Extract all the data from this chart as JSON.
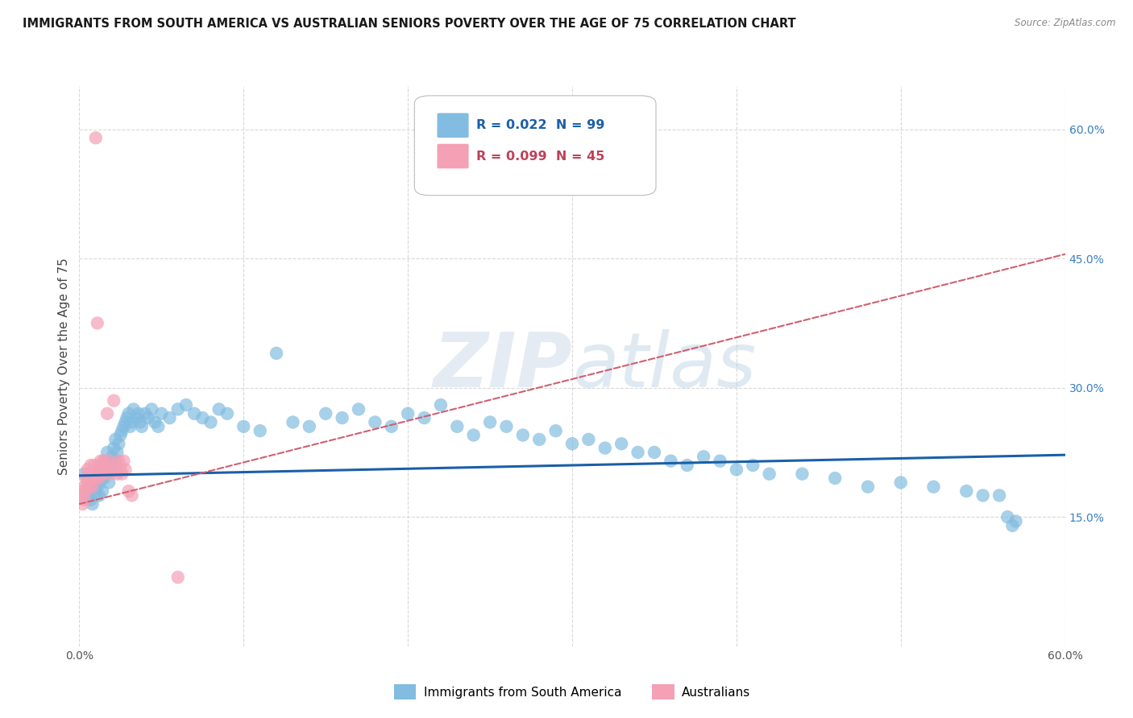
{
  "title": "IMMIGRANTS FROM SOUTH AMERICA VS AUSTRALIAN SENIORS POVERTY OVER THE AGE OF 75 CORRELATION CHART",
  "source": "Source: ZipAtlas.com",
  "ylabel": "Seniors Poverty Over the Age of 75",
  "xlim": [
    0.0,
    0.6
  ],
  "ylim": [
    0.0,
    0.65
  ],
  "x_ticks": [
    0.0,
    0.1,
    0.2,
    0.3,
    0.4,
    0.5,
    0.6
  ],
  "x_tick_labels": [
    "0.0%",
    "",
    "",
    "",
    "",
    "",
    "60.0%"
  ],
  "y_ticks_right": [
    0.15,
    0.3,
    0.45,
    0.6
  ],
  "y_tick_labels_right": [
    "15.0%",
    "30.0%",
    "45.0%",
    "60.0%"
  ],
  "watermark": "ZIPatlas",
  "legend_blue_label": "Immigrants from South America",
  "legend_pink_label": "Australians",
  "blue_color": "#82bce0",
  "pink_color": "#f4a0b5",
  "blue_line_color": "#1a5fa8",
  "pink_line_color": "#d06070",
  "grid_color": "#d8d8d8",
  "background_color": "#ffffff",
  "blue_scatter_x": [
    0.003,
    0.005,
    0.006,
    0.007,
    0.008,
    0.009,
    0.01,
    0.01,
    0.011,
    0.012,
    0.012,
    0.013,
    0.013,
    0.014,
    0.015,
    0.015,
    0.016,
    0.017,
    0.017,
    0.018,
    0.019,
    0.02,
    0.02,
    0.021,
    0.022,
    0.022,
    0.023,
    0.024,
    0.025,
    0.026,
    0.027,
    0.028,
    0.029,
    0.03,
    0.031,
    0.032,
    0.033,
    0.035,
    0.036,
    0.037,
    0.038,
    0.04,
    0.042,
    0.044,
    0.046,
    0.048,
    0.05,
    0.055,
    0.06,
    0.065,
    0.07,
    0.075,
    0.08,
    0.085,
    0.09,
    0.1,
    0.11,
    0.12,
    0.13,
    0.14,
    0.15,
    0.16,
    0.17,
    0.18,
    0.19,
    0.2,
    0.21,
    0.22,
    0.23,
    0.24,
    0.25,
    0.26,
    0.27,
    0.28,
    0.29,
    0.3,
    0.31,
    0.32,
    0.33,
    0.34,
    0.35,
    0.36,
    0.37,
    0.38,
    0.39,
    0.4,
    0.41,
    0.42,
    0.44,
    0.46,
    0.48,
    0.5,
    0.52,
    0.54,
    0.55,
    0.56,
    0.565,
    0.568,
    0.57
  ],
  "blue_scatter_y": [
    0.2,
    0.175,
    0.185,
    0.17,
    0.165,
    0.19,
    0.185,
    0.178,
    0.192,
    0.188,
    0.175,
    0.195,
    0.205,
    0.18,
    0.215,
    0.195,
    0.21,
    0.2,
    0.225,
    0.19,
    0.215,
    0.22,
    0.205,
    0.23,
    0.24,
    0.215,
    0.225,
    0.235,
    0.245,
    0.25,
    0.255,
    0.26,
    0.265,
    0.27,
    0.255,
    0.26,
    0.275,
    0.265,
    0.27,
    0.26,
    0.255,
    0.27,
    0.265,
    0.275,
    0.26,
    0.255,
    0.27,
    0.265,
    0.275,
    0.28,
    0.27,
    0.265,
    0.26,
    0.275,
    0.27,
    0.255,
    0.25,
    0.34,
    0.26,
    0.255,
    0.27,
    0.265,
    0.275,
    0.26,
    0.255,
    0.27,
    0.265,
    0.28,
    0.255,
    0.245,
    0.26,
    0.255,
    0.245,
    0.24,
    0.25,
    0.235,
    0.24,
    0.23,
    0.235,
    0.225,
    0.225,
    0.215,
    0.21,
    0.22,
    0.215,
    0.205,
    0.21,
    0.2,
    0.2,
    0.195,
    0.185,
    0.19,
    0.185,
    0.18,
    0.175,
    0.175,
    0.15,
    0.14,
    0.145
  ],
  "pink_scatter_x": [
    0.001,
    0.002,
    0.002,
    0.003,
    0.003,
    0.004,
    0.004,
    0.005,
    0.005,
    0.006,
    0.006,
    0.007,
    0.007,
    0.008,
    0.008,
    0.009,
    0.009,
    0.01,
    0.01,
    0.011,
    0.011,
    0.012,
    0.012,
    0.013,
    0.013,
    0.014,
    0.015,
    0.015,
    0.016,
    0.017,
    0.017,
    0.018,
    0.019,
    0.02,
    0.021,
    0.022,
    0.023,
    0.024,
    0.025,
    0.026,
    0.027,
    0.028,
    0.03,
    0.032,
    0.06
  ],
  "pink_scatter_y": [
    0.175,
    0.18,
    0.165,
    0.185,
    0.17,
    0.18,
    0.195,
    0.19,
    0.205,
    0.185,
    0.2,
    0.195,
    0.21,
    0.185,
    0.2,
    0.195,
    0.21,
    0.195,
    0.59,
    0.2,
    0.375,
    0.195,
    0.21,
    0.2,
    0.215,
    0.205,
    0.2,
    0.215,
    0.21,
    0.205,
    0.27,
    0.215,
    0.2,
    0.205,
    0.285,
    0.21,
    0.2,
    0.215,
    0.205,
    0.2,
    0.215,
    0.205,
    0.18,
    0.175,
    0.08
  ],
  "blue_trendline_x": [
    0.0,
    0.6
  ],
  "blue_trendline_y": [
    0.198,
    0.222
  ],
  "pink_trendline_x": [
    0.0,
    0.6
  ],
  "pink_trendline_y": [
    0.165,
    0.455
  ]
}
